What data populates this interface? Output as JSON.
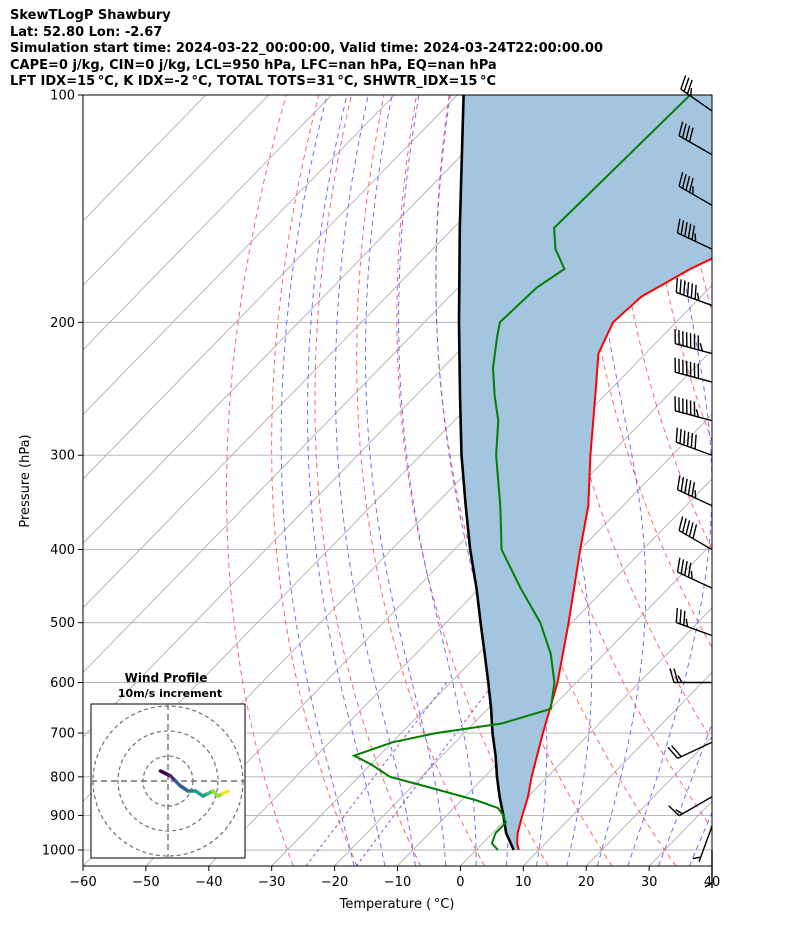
{
  "header": {
    "line1": "SkewTLogP Shawbury",
    "line2": "Lat: 52.80   Lon: -2.67",
    "line3": "Simulation start time: 2024-03-22_00:00:00, Valid time: 2024-03-24T22:00:00.00",
    "line4": "CAPE=0 j/kg, CIN=0 j/kg, LCL=950 hPa, LFC=nan hPa, EQ=nan hPa",
    "line5": "LFT IDX=15 °C, K IDX=-2 °C, TOTAL TOTS=31 °C, SHWTR_IDX=15 °C"
  },
  "chart_data": {
    "type": "line",
    "xlabel": "Temperature ( °C)",
    "ylabel": "Pressure (hPa)",
    "xlim": [
      -60,
      40
    ],
    "ylim": [
      1050,
      100
    ],
    "x_ticks": [
      -60,
      -50,
      -40,
      -30,
      -20,
      -10,
      0,
      10,
      20,
      30,
      40
    ],
    "x_tick_labels": [
      "−60",
      "−50",
      "−40",
      "−30",
      "−20",
      "−10",
      "0",
      "10",
      "20",
      "30",
      "40"
    ],
    "y_ticks": [
      1000,
      900,
      800,
      700,
      600,
      500,
      400,
      300,
      200,
      100
    ],
    "y_tick_labels": [
      "1000",
      "900",
      "800",
      "700",
      "600",
      "500",
      "400",
      "300",
      "200",
      "100"
    ],
    "y_scale": "log",
    "grid": true,
    "colors": {
      "temperature": "#ff0000",
      "dewpoint": "#008000",
      "parcel": "#000000",
      "shade": "#a3c5df",
      "dry_adiabat": "#ff6666",
      "moist_adiabat": "#6f6fff",
      "mixing_ratio": "#9a4fc8",
      "isotherm": "#b0b0b0"
    },
    "series": [
      {
        "name": "",
        "role": "temperature",
        "pressure": [
          1000,
          980,
          950,
          900,
          850,
          800,
          700,
          600,
          500,
          400,
          350,
          300,
          250,
          220,
          200,
          185,
          170,
          160,
          150,
          140,
          125,
          110,
          100
        ],
        "temperature": [
          6.8,
          5.5,
          4.0,
          2.0,
          0.0,
          -2.5,
          -7.5,
          -13.0,
          -20.5,
          -30.0,
          -35.5,
          -43.0,
          -51.5,
          -57.5,
          -60.0,
          -59.5,
          -56.0,
          -52.5,
          -52.0,
          -53.5,
          -57.0,
          -63.5,
          -69.5
        ]
      },
      {
        "name": "",
        "role": "dewpoint",
        "pressure": [
          1000,
          980,
          950,
          920,
          900,
          880,
          860,
          830,
          800,
          770,
          750,
          720,
          700,
          680,
          650,
          600,
          550,
          500,
          450,
          400,
          350,
          300,
          270,
          250,
          230,
          210,
          200,
          180,
          170,
          160,
          150,
          100
        ],
        "temperature": [
          3.5,
          1.5,
          0.5,
          0.5,
          -1.0,
          -3.0,
          -7.5,
          -16.0,
          -25.0,
          -30.0,
          -34.0,
          -30.0,
          -24.5,
          -15.5,
          -10.0,
          -13.5,
          -18.5,
          -25.0,
          -33.5,
          -42.5,
          -49.5,
          -58.0,
          -63.0,
          -67.5,
          -72.0,
          -76.0,
          -78.0,
          -77.5,
          -76.0,
          -80.5,
          -84.0,
          -83.0
        ]
      },
      {
        "name": "",
        "role": "parcel",
        "pressure": [
          1000,
          950,
          900,
          850,
          800,
          750,
          700,
          650,
          600,
          550,
          500,
          450,
          400,
          350,
          300,
          250,
          200,
          150,
          100
        ],
        "temperature": [
          6.0,
          2.2,
          -1.0,
          -4.5,
          -8.0,
          -11.5,
          -15.5,
          -19.5,
          -24.0,
          -29.0,
          -34.5,
          -40.5,
          -47.5,
          -55.0,
          -63.5,
          -73.0,
          -84.5,
          -99.0,
          -119.0
        ]
      }
    ],
    "wind_barbs": {
      "pressure": [
        1000,
        930,
        850,
        720,
        600,
        520,
        450,
        400,
        350,
        300,
        270,
        240,
        220,
        190,
        160,
        140,
        120,
        105
      ],
      "speed_kt": [
        5,
        5,
        15,
        20,
        25,
        35,
        45,
        50,
        55,
        60,
        65,
        70,
        75,
        65,
        55,
        45,
        40,
        35
      ],
      "direction_deg": [
        180,
        200,
        240,
        245,
        270,
        290,
        295,
        300,
        295,
        290,
        285,
        285,
        285,
        290,
        295,
        300,
        300,
        305
      ]
    },
    "hodograph": {
      "title": "Wind Profile",
      "subtitle": "10m/s increment",
      "u": [
        -3,
        -1,
        1,
        3,
        5,
        8,
        11,
        14,
        16,
        18,
        20,
        22,
        24
      ],
      "v": [
        4,
        3,
        2,
        0,
        -2,
        -4,
        -4,
        -6,
        -5,
        -4,
        -6,
        -5,
        -4
      ]
    }
  }
}
